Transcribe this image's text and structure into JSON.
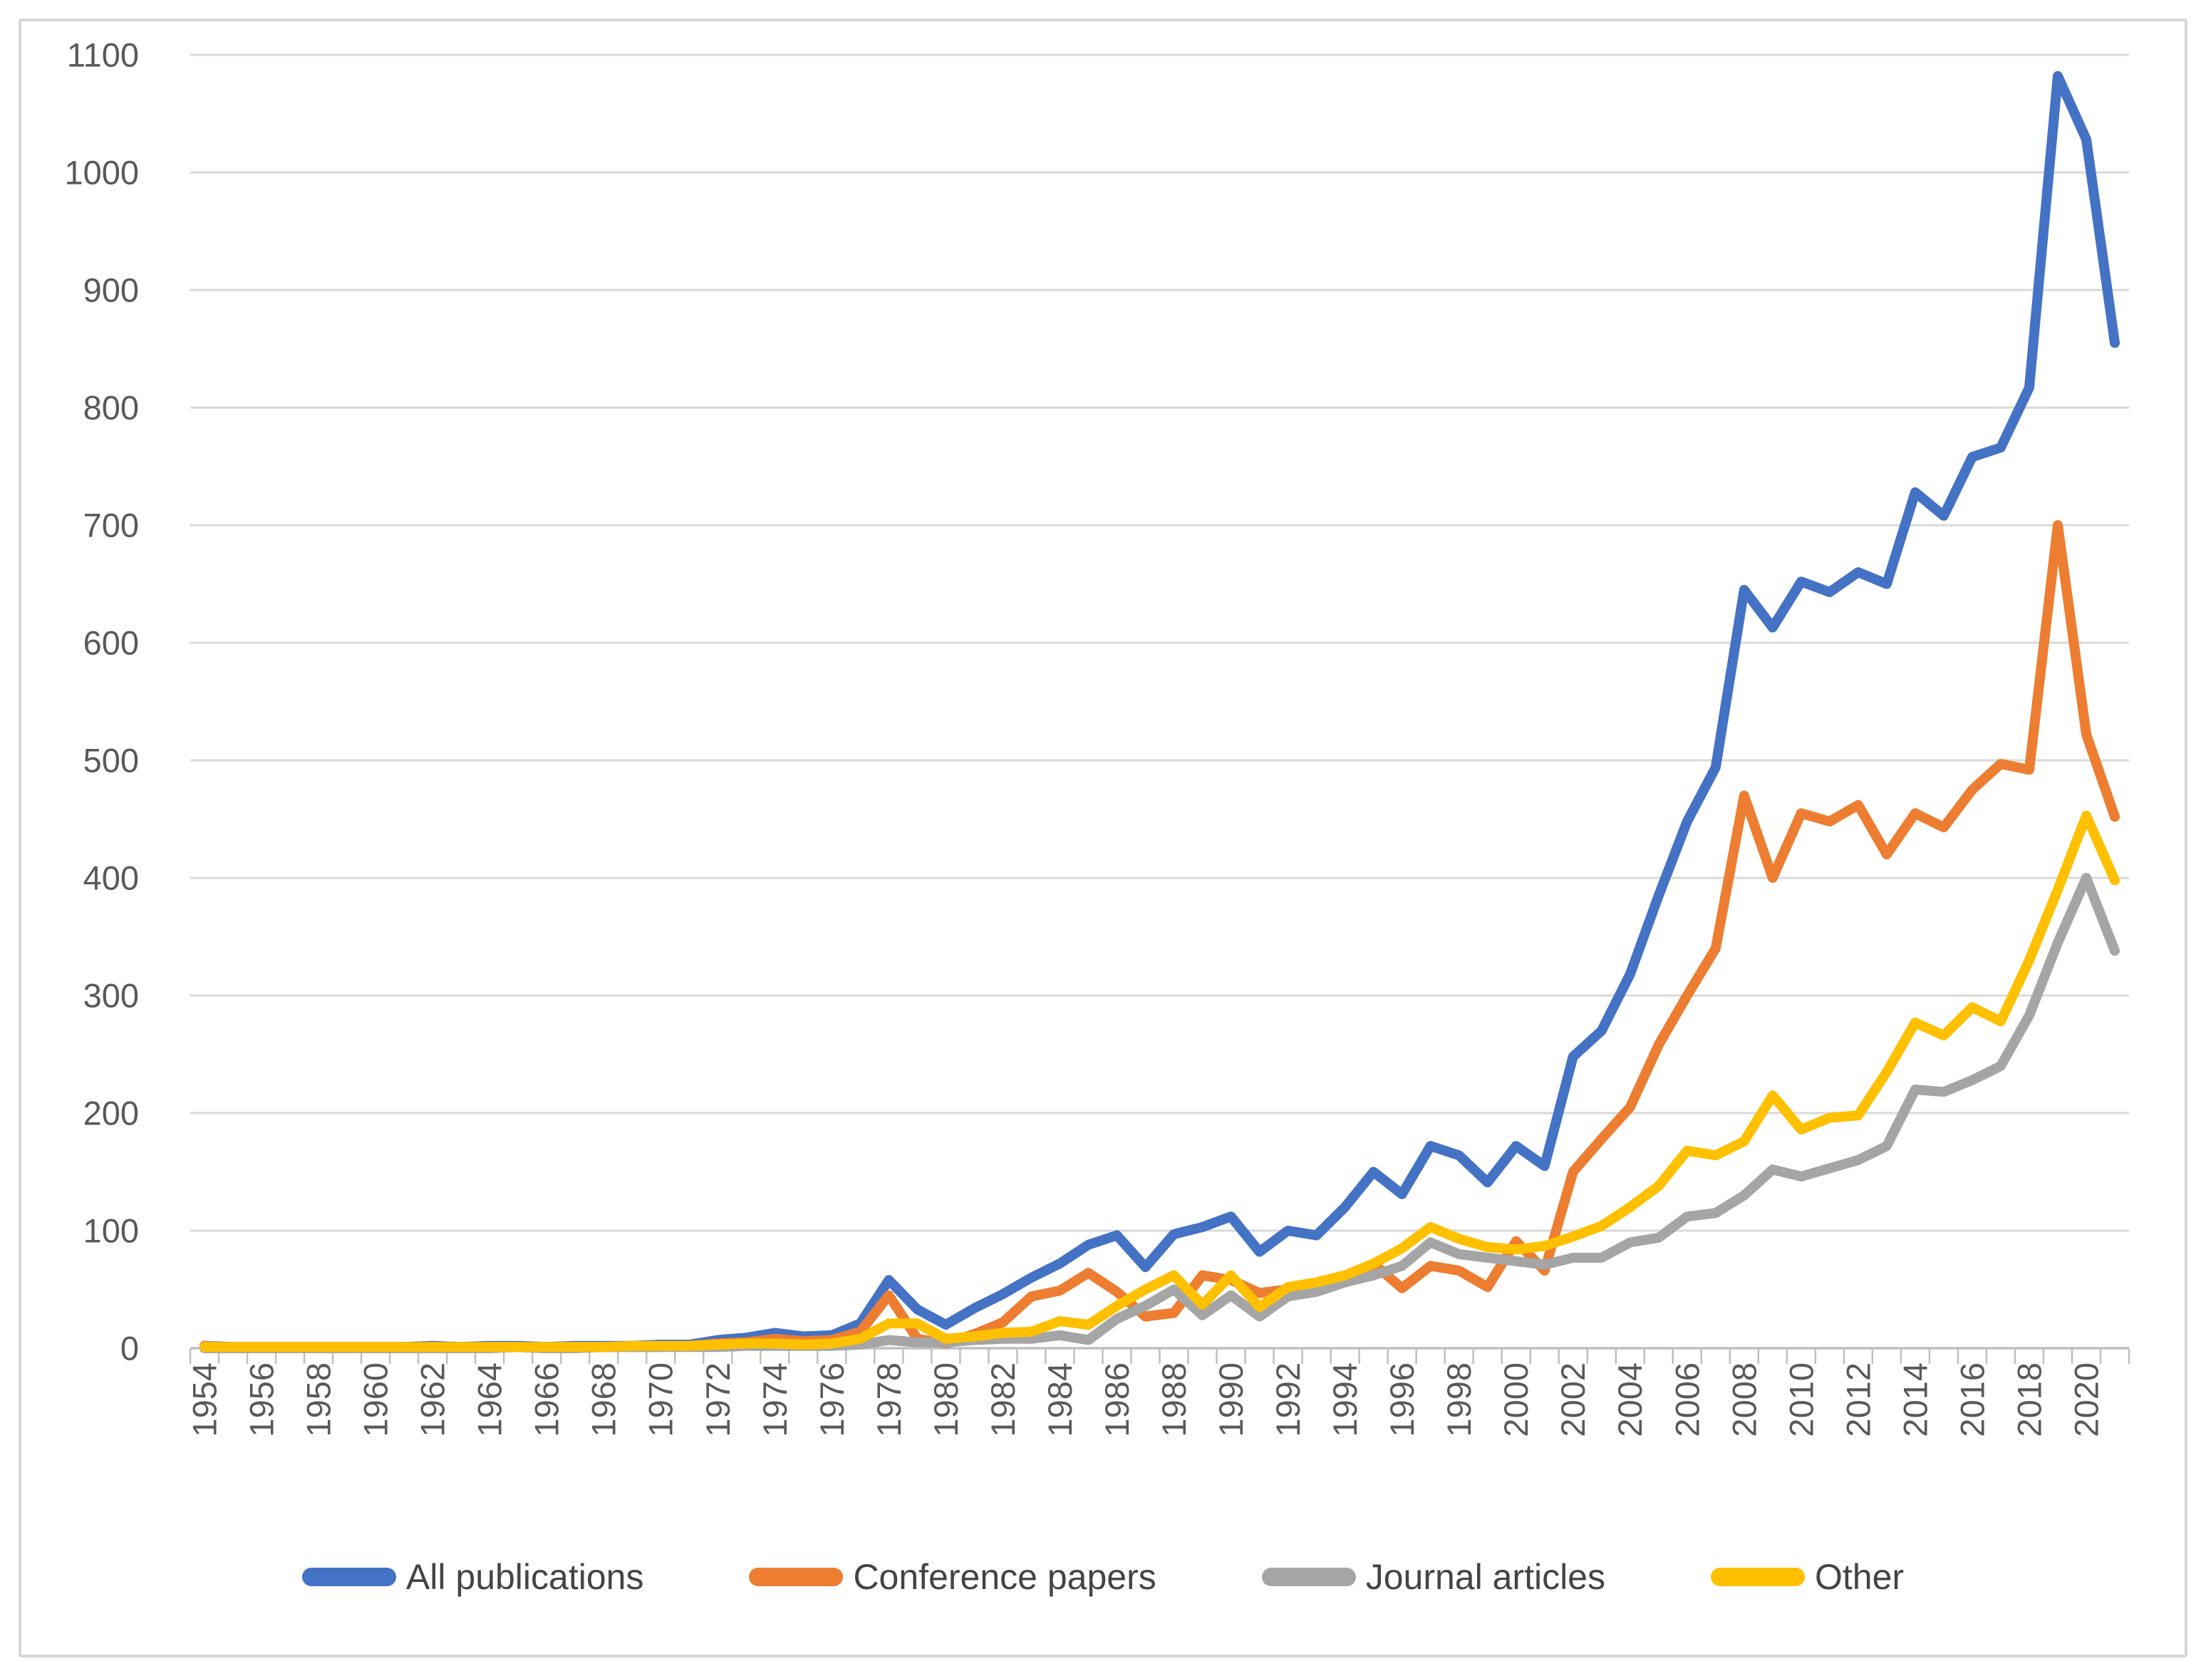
{
  "chart_data": {
    "type": "line",
    "title": "",
    "xlabel": "",
    "ylabel": "",
    "ylim": [
      0,
      1100
    ],
    "ytick_step": 100,
    "grid": true,
    "legend_position": "bottom",
    "x_label_rotation": -90,
    "x_labels_every": 2,
    "years": [
      1954,
      1955,
      1956,
      1957,
      1958,
      1959,
      1960,
      1961,
      1962,
      1963,
      1964,
      1965,
      1966,
      1967,
      1968,
      1969,
      1970,
      1971,
      1972,
      1973,
      1974,
      1975,
      1976,
      1977,
      1978,
      1979,
      1980,
      1981,
      1982,
      1983,
      1984,
      1985,
      1986,
      1987,
      1988,
      1989,
      1990,
      1991,
      1992,
      1993,
      1994,
      1995,
      1996,
      1997,
      1998,
      1999,
      2000,
      2001,
      2002,
      2003,
      2004,
      2005,
      2006,
      2007,
      2008,
      2009,
      2010,
      2011,
      2012,
      2013,
      2014,
      2015,
      2016,
      2017,
      2018,
      2019,
      2020,
      2021
    ],
    "series": [
      {
        "name": "All publications",
        "color": "#4472C4",
        "values": [
          2,
          1,
          1,
          1,
          1,
          1,
          1,
          1,
          2,
          1,
          2,
          2,
          1,
          2,
          2,
          2,
          3,
          3,
          7,
          9,
          13,
          10,
          11,
          21,
          58,
          33,
          20,
          34,
          46,
          60,
          72,
          88,
          96,
          69,
          97,
          103,
          112,
          82,
          100,
          96,
          120,
          150,
          131,
          172,
          164,
          141,
          172,
          155,
          248,
          270,
          318,
          385,
          448,
          494,
          645,
          613,
          652,
          643,
          660,
          650,
          728,
          708,
          758,
          766,
          817,
          1082,
          1028,
          855
        ]
      },
      {
        "name": "Conference papers",
        "color": "#ED7D31",
        "values": [
          2,
          0,
          0,
          0,
          0,
          0,
          0,
          0,
          1,
          0,
          1,
          1,
          0,
          1,
          1,
          1,
          1,
          2,
          4,
          5,
          8,
          6,
          7,
          14,
          45,
          8,
          4,
          12,
          22,
          44,
          49,
          64,
          48,
          27,
          30,
          62,
          58,
          47,
          50,
          52,
          57,
          72,
          51,
          70,
          66,
          52,
          91,
          66,
          150,
          178,
          205,
          258,
          300,
          340,
          470,
          400,
          455,
          448,
          462,
          420,
          455,
          443,
          475,
          497,
          492,
          700,
          522,
          452
        ]
      },
      {
        "name": "Journal articles",
        "color": "#A5A5A5",
        "values": [
          0,
          0,
          0,
          0,
          0,
          0,
          0,
          0,
          0,
          0,
          0,
          1,
          0,
          0,
          1,
          1,
          1,
          1,
          1,
          2,
          2,
          2,
          2,
          3,
          7,
          5,
          5,
          7,
          8,
          8,
          11,
          7,
          25,
          36,
          50,
          28,
          45,
          27,
          44,
          48,
          56,
          62,
          70,
          90,
          80,
          77,
          74,
          71,
          77,
          77,
          90,
          94,
          112,
          115,
          130,
          152,
          146,
          153,
          160,
          172,
          220,
          218,
          228,
          240,
          283,
          345,
          400,
          338
        ]
      },
      {
        "name": "Other",
        "color": "#FFC000",
        "values": [
          1,
          1,
          1,
          1,
          1,
          1,
          1,
          1,
          1,
          1,
          1,
          1,
          1,
          1,
          1,
          2,
          2,
          2,
          3,
          4,
          4,
          3,
          4,
          8,
          21,
          21,
          8,
          10,
          13,
          14,
          23,
          20,
          36,
          50,
          62,
          37,
          62,
          35,
          52,
          56,
          62,
          72,
          85,
          103,
          93,
          86,
          84,
          87,
          95,
          104,
          120,
          138,
          168,
          164,
          176,
          215,
          186,
          196,
          198,
          235,
          277,
          266,
          290,
          278,
          330,
          390,
          453,
          398
        ]
      }
    ],
    "colors": {
      "gridline": "#D9D9D9",
      "axis_line": "#BFBFBF",
      "tick_mark": "#BFBFBF",
      "tick_label": "#595959",
      "legend_text": "#444444",
      "frame_border": "#D6D6D6",
      "background": "#FFFFFF"
    }
  }
}
